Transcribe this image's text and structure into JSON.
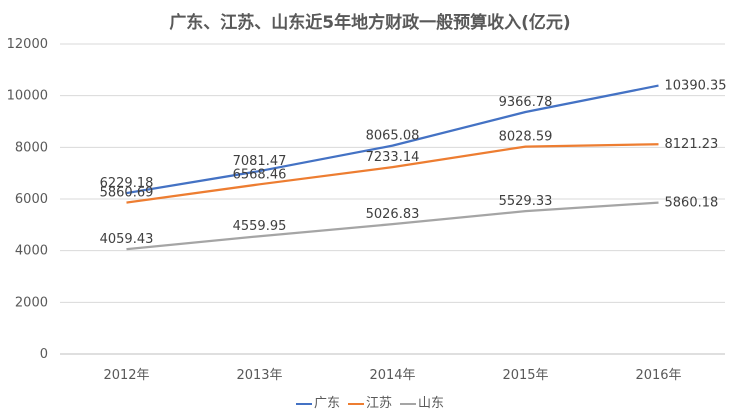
{
  "chart_data": {
    "type": "line",
    "title": "广东、江苏、山东近5年地方财政一般预算收入(亿元)",
    "categories": [
      "2012年",
      "2013年",
      "2014年",
      "2015年",
      "2016年"
    ],
    "ylim": [
      0,
      12000
    ],
    "yticks": [
      0,
      2000,
      4000,
      6000,
      8000,
      10000,
      12000
    ],
    "grid": true,
    "legend_position": "bottom",
    "series": [
      {
        "name": "广东",
        "color": "#4472C4",
        "values": [
          6229.18,
          7081.47,
          8065.08,
          9366.78,
          10390.35
        ],
        "labels": [
          "6229.18",
          "7081.47",
          "8065.08",
          "9366.78",
          "10390.35"
        ]
      },
      {
        "name": "江苏",
        "color": "#ED7D31",
        "values": [
          5860.69,
          6568.46,
          7233.14,
          8028.59,
          8121.23
        ],
        "labels": [
          "5860.69",
          "6568.46",
          "7233.14",
          "8028.59",
          "8121.23"
        ]
      },
      {
        "name": "山东",
        "color": "#A5A5A5",
        "values": [
          4059.43,
          4559.95,
          5026.83,
          5529.33,
          5860.18
        ],
        "labels": [
          "4059.43",
          "4559.95",
          "5026.83",
          "5529.33",
          "5860.18"
        ]
      }
    ]
  }
}
